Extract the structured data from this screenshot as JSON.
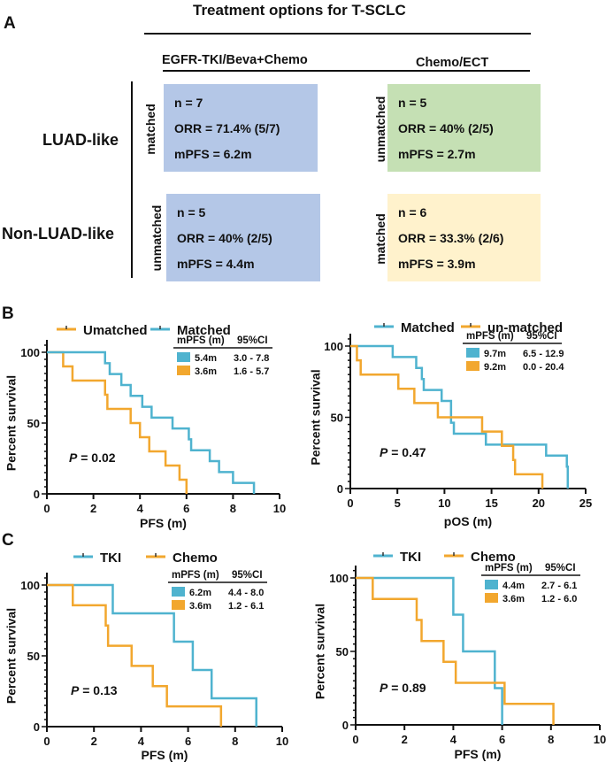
{
  "panelA": {
    "letter": "A",
    "title": "Treatment options for T-SCLC",
    "columns": [
      "EGFR-TKI/Beva+Chemo",
      "Chemo/ECT"
    ],
    "rows": [
      "LUAD-like",
      "Non-LUAD-like"
    ],
    "cells": [
      {
        "tag": "matched",
        "color": "#b4c7e7",
        "lines": [
          "n = 7",
          "ORR = 71.4% (5/7)",
          "mPFS = 6.2m"
        ]
      },
      {
        "tag": "unmatched",
        "color": "#c5e0b4",
        "lines": [
          "n = 5",
          "ORR = 40% (2/5)",
          "mPFS = 2.7m"
        ]
      },
      {
        "tag": "unmatched",
        "color": "#b4c7e7",
        "lines": [
          "n = 5",
          "ORR = 40% (2/5)",
          "mPFS = 4.4m"
        ]
      },
      {
        "tag": "matched",
        "color": "#fff2cc",
        "lines": [
          "n = 6",
          "ORR = 33.3% (2/6)",
          "mPFS = 3.9m"
        ]
      }
    ]
  },
  "panelB": {
    "letter": "B"
  },
  "panelC": {
    "letter": "C"
  },
  "colors": {
    "blue": "#4fb3cf",
    "orange": "#f2a72e"
  },
  "chart_data": [
    {
      "id": "B-left",
      "type": "line",
      "step": true,
      "xlabel": "PFS (m)",
      "ylabel": "Percent survival",
      "xlim": [
        0,
        10
      ],
      "ylim": [
        0,
        100
      ],
      "xticks": [
        0,
        2,
        4,
        6,
        8,
        10
      ],
      "yticks": [
        0,
        50,
        100
      ],
      "annotation": {
        "p_label": "P",
        "p_value": " = 0.02"
      },
      "legend": [
        "Umatched",
        "Matched"
      ],
      "legend_placement": "top",
      "table": {
        "headers": [
          "mPFS (m)",
          "95%CI"
        ],
        "rows": [
          {
            "color": "blue",
            "median": "5.4m",
            "ci": "3.0 - 7.8"
          },
          {
            "color": "orange",
            "median": "3.6m",
            "ci": "1.6 - 5.7"
          }
        ]
      },
      "series": [
        {
          "name": "Umatched",
          "color": "orange",
          "x": [
            0,
            0.7,
            1.1,
            2.5,
            2.6,
            3.6,
            4.0,
            4.4,
            5.1,
            5.7,
            6.0
          ],
          "y": [
            100,
            90,
            80,
            70,
            60,
            50,
            40,
            30,
            20,
            10,
            0
          ]
        },
        {
          "name": "Matched",
          "color": "blue",
          "x": [
            0,
            2.5,
            2.7,
            3.2,
            3.6,
            4.1,
            4.5,
            5.4,
            6.1,
            6.2,
            7.0,
            7.4,
            8.0,
            8.9
          ],
          "y": [
            100,
            92.3,
            84.6,
            76.9,
            69.2,
            61.5,
            53.8,
            46.2,
            38.5,
            30.8,
            23.1,
            15.4,
            7.7,
            0
          ]
        }
      ]
    },
    {
      "id": "B-right",
      "type": "line",
      "step": true,
      "xlabel": "pOS (m)",
      "ylabel": "Percent survival",
      "xlim": [
        0,
        25
      ],
      "ylim": [
        0,
        100
      ],
      "xticks": [
        0,
        5,
        10,
        15,
        20,
        25
      ],
      "yticks": [
        0,
        50,
        100
      ],
      "annotation": {
        "p_label": "P",
        "p_value": " = 0.47"
      },
      "legend": [
        "Matched",
        "un-matched"
      ],
      "legend_placement": "top",
      "table": {
        "headers": [
          "mPFS (m)",
          "95%CI"
        ],
        "rows": [
          {
            "color": "blue",
            "median": "9.7m",
            "ci": "6.5 - 12.9"
          },
          {
            "color": "orange",
            "median": "9.2m",
            "ci": "0.0 - 20.4"
          }
        ]
      },
      "series": [
        {
          "name": "Matched",
          "color": "blue",
          "x": [
            0,
            4.5,
            7.0,
            7.6,
            7.8,
            9.7,
            10.7,
            11.0,
            14.4,
            20.8,
            23.0,
            23.1
          ],
          "y": [
            100,
            92.3,
            84.6,
            76.9,
            69.2,
            61.5,
            46.2,
            38.5,
            30.8,
            23.1,
            15.4,
            0
          ]
        },
        {
          "name": "un-matched",
          "color": "orange",
          "x": [
            0,
            0.7,
            1.1,
            5.1,
            6.8,
            9.3,
            14.0,
            16.1,
            17.3,
            17.5,
            20.4
          ],
          "y": [
            100,
            90,
            80,
            70,
            60,
            50,
            40,
            30,
            20,
            10,
            0
          ]
        }
      ]
    },
    {
      "id": "C-left",
      "type": "line",
      "step": true,
      "xlabel": "PFS (m)",
      "ylabel": "Percent survival",
      "xlim": [
        0,
        10
      ],
      "ylim": [
        0,
        100
      ],
      "xticks": [
        0,
        2,
        4,
        6,
        8,
        10
      ],
      "yticks": [
        0,
        50,
        100
      ],
      "annotation": {
        "p_label": "P",
        "p_value": " = 0.13"
      },
      "legend": [
        "TKI",
        "Chemo"
      ],
      "legend_placement": "top",
      "table": {
        "headers": [
          "mPFS (m)",
          "95%CI"
        ],
        "rows": [
          {
            "color": "blue",
            "median": "6.2m",
            "ci": "4.4 - 8.0"
          },
          {
            "color": "orange",
            "median": "3.6m",
            "ci": "1.2 - 6.1"
          }
        ]
      },
      "series": [
        {
          "name": "TKI",
          "color": "blue",
          "x": [
            0,
            2.8,
            5.4,
            6.2,
            7.0,
            8.9
          ],
          "y": [
            100,
            80,
            60,
            40,
            20,
            0
          ]
        },
        {
          "name": "Chemo",
          "color": "orange",
          "x": [
            0,
            1.1,
            2.5,
            2.6,
            3.6,
            4.5,
            5.1,
            7.4
          ],
          "y": [
            100,
            85.7,
            71.4,
            57.1,
            42.9,
            28.6,
            14.3,
            0
          ]
        }
      ]
    },
    {
      "id": "C-right",
      "type": "line",
      "step": true,
      "xlabel": "PFS (m)",
      "ylabel": "Percent survival",
      "xlim": [
        0,
        10
      ],
      "ylim": [
        0,
        100
      ],
      "xticks": [
        0,
        2,
        4,
        6,
        8,
        10
      ],
      "yticks": [
        0,
        50,
        100
      ],
      "annotation": {
        "p_label": "P",
        "p_value": " = 0.89"
      },
      "legend": [
        "TKI",
        "Chemo"
      ],
      "legend_placement": "top",
      "table": {
        "headers": [
          "mPFS (m)",
          "95%CI"
        ],
        "rows": [
          {
            "color": "blue",
            "median": "4.4m",
            "ci": "2.7 - 6.1"
          },
          {
            "color": "orange",
            "median": "3.6m",
            "ci": "1.2 - 6.0"
          }
        ]
      },
      "series": [
        {
          "name": "TKI",
          "color": "blue",
          "x": [
            0,
            4.0,
            4.4,
            5.7,
            6.0
          ],
          "y": [
            100,
            75,
            50,
            25,
            0
          ]
        },
        {
          "name": "Chemo",
          "color": "orange",
          "x": [
            0,
            0.7,
            2.5,
            2.7,
            3.6,
            4.1,
            6.1,
            8.1
          ],
          "y": [
            100,
            85.7,
            71.4,
            57.1,
            42.9,
            28.6,
            14.3,
            0
          ]
        }
      ]
    }
  ]
}
